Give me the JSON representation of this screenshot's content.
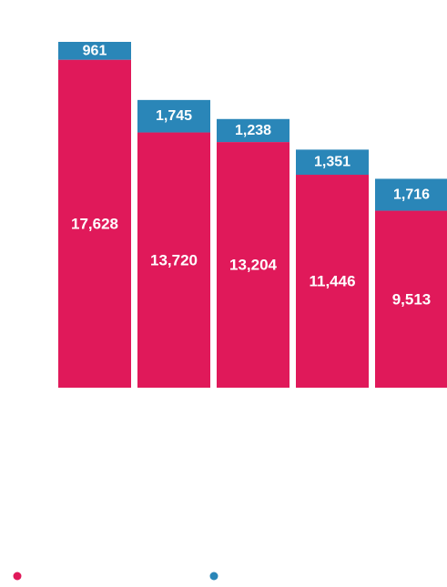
{
  "chart_data": {
    "type": "bar",
    "stacked": true,
    "categories": [
      "",
      "",
      "",
      "",
      ""
    ],
    "series": [
      {
        "color": "#e0195a",
        "values": [
          17628,
          13720,
          13204,
          11446,
          9513
        ],
        "labels": [
          "17,628",
          "13,720",
          "13,204",
          "11,446",
          "9,513"
        ]
      },
      {
        "color": "#2a86b8",
        "values": [
          961,
          1745,
          1238,
          1351,
          1716
        ],
        "labels": [
          "961",
          "1,745",
          "1,238",
          "1,351",
          "1,716"
        ]
      }
    ],
    "title": "",
    "xlabel": "",
    "ylabel": "",
    "ylim": [
      0,
      18589
    ],
    "grid": false,
    "legend": {
      "position": "bottom",
      "entries": 2
    }
  }
}
